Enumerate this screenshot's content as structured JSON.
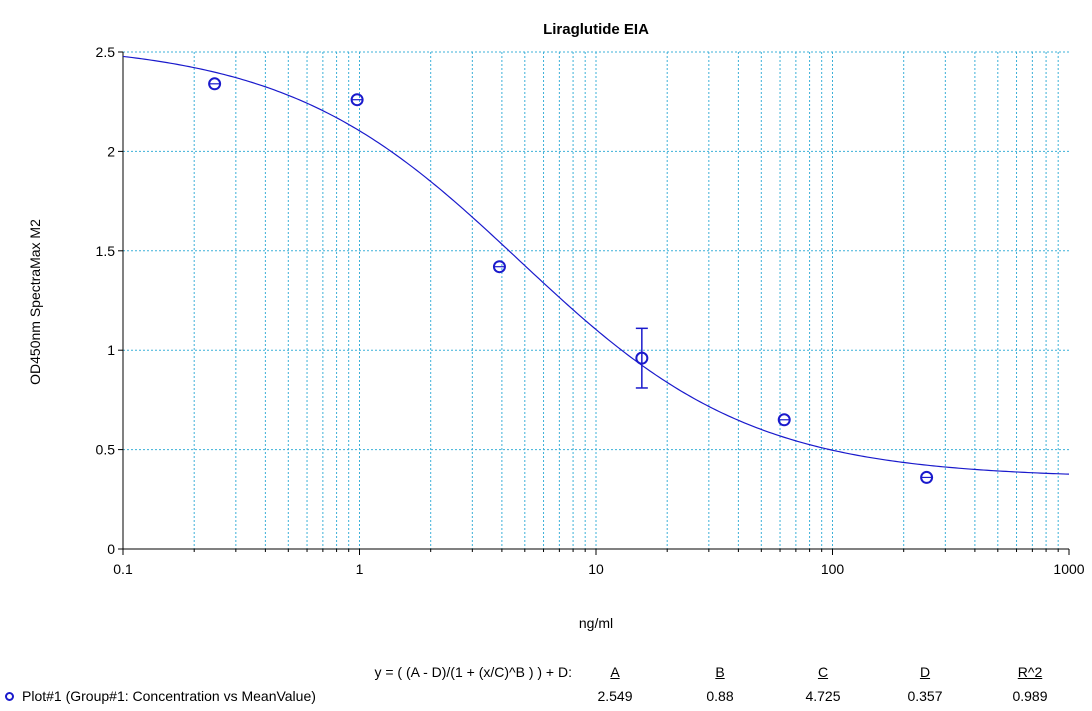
{
  "chart_data": {
    "type": "scatter",
    "title": "Liraglutide EIA",
    "xlabel": "ng/ml",
    "ylabel": "OD450nm SpectraMax M2",
    "xscale": "log",
    "xlim": [
      0.1,
      1000
    ],
    "ylim": [
      0,
      2.5
    ],
    "grid": true,
    "x_ticks": [
      "0.1",
      "1",
      "10",
      "100",
      "1000"
    ],
    "y_ticks": [
      "0",
      "0.5",
      "1",
      "1.5",
      "2",
      "2.5"
    ],
    "series": [
      {
        "name": "Plot#1 (Group#1: Concentration vs MeanValue)",
        "x": [
          0.244,
          0.977,
          3.906,
          15.625,
          62.5,
          250
        ],
        "y": [
          2.34,
          2.26,
          1.42,
          0.96,
          0.65,
          0.36
        ],
        "error": [
          0,
          0,
          0,
          0.15,
          0,
          0
        ]
      }
    ],
    "fit": {
      "equation": "y = ( (A - D)/(1 + (x/C)^B ) ) + D:",
      "params": {
        "A": 2.549,
        "B": 0.88,
        "C": 4.725,
        "D": 0.357
      },
      "headers": [
        "A",
        "B",
        "C",
        "D",
        "R^2"
      ],
      "values": [
        "2.549",
        "0.88",
        "4.725",
        "0.357",
        "0.989"
      ]
    },
    "colors": {
      "series": "#1a1acc",
      "grid": "#3cb0d8",
      "axis": "#000000"
    }
  }
}
